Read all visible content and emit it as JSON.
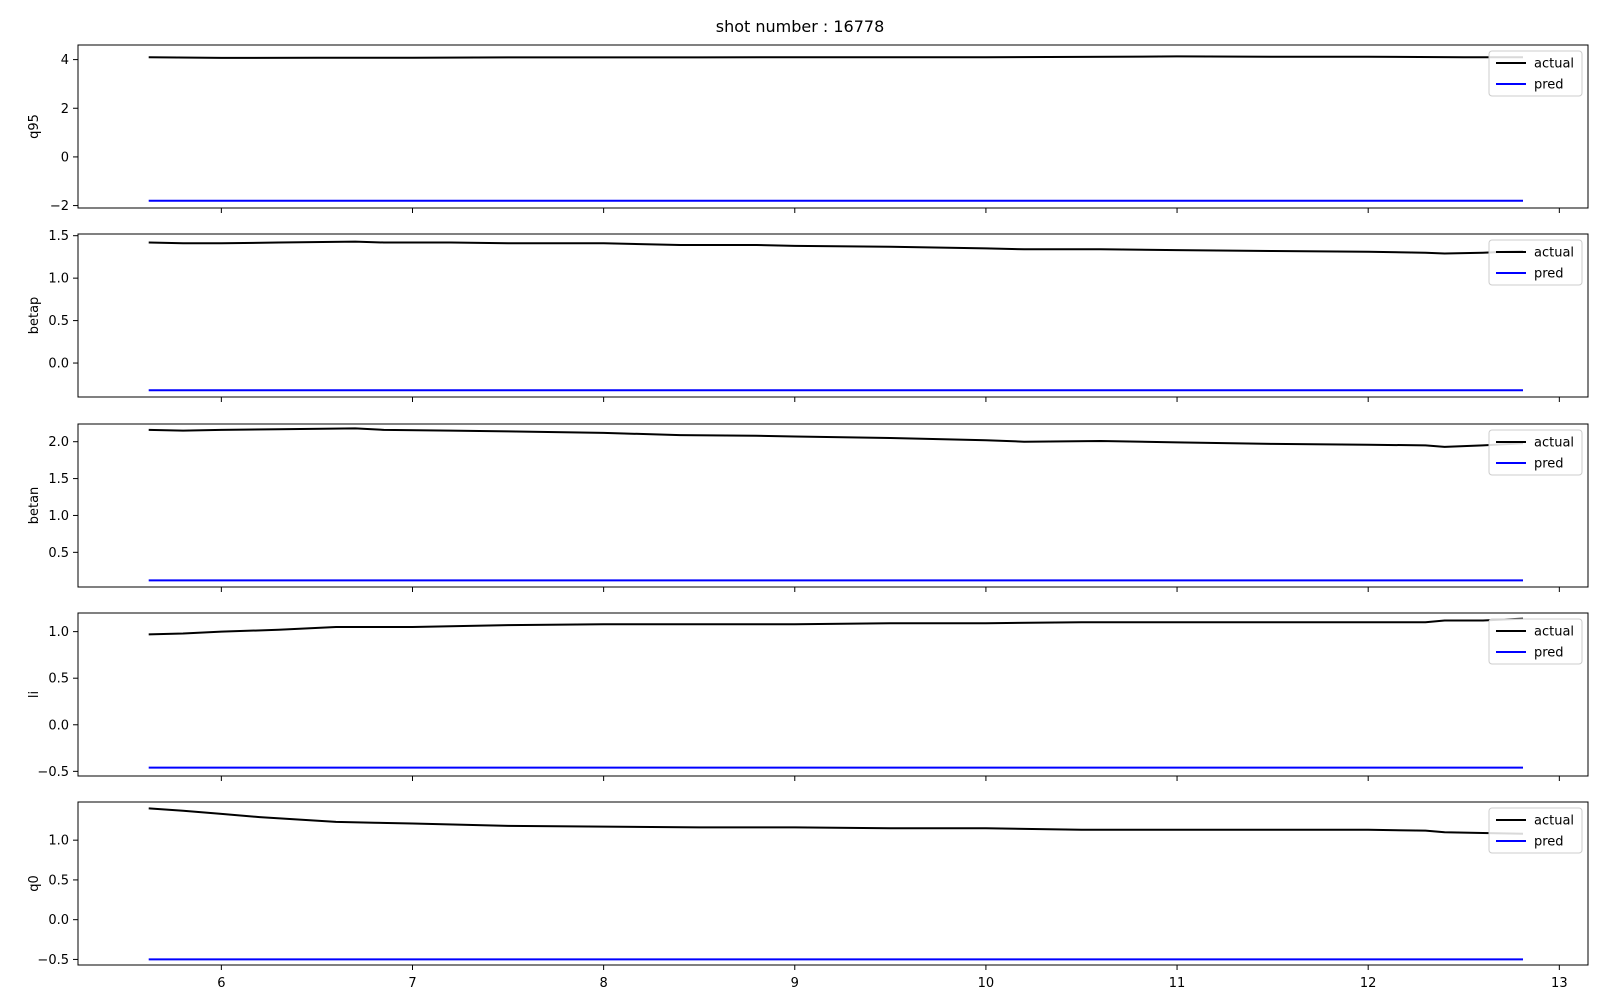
{
  "figure": {
    "title": "shot number : 16778"
  },
  "chart_data": [
    {
      "type": "line",
      "ylabel": "q95",
      "xlim": [
        5.25,
        13.15
      ],
      "ylim": [
        -2.1,
        4.6
      ],
      "yticks": [
        -2,
        0,
        2,
        4
      ],
      "ytick_labels": [
        "−2",
        "0",
        "2",
        "4"
      ],
      "xticks": [
        6,
        7,
        8,
        9,
        10,
        11,
        12,
        13
      ],
      "xtick_labels": [],
      "legend": {
        "position": "top-right",
        "entries": [
          "actual",
          "pred"
        ]
      },
      "series": [
        {
          "name": "actual",
          "color": "#000000",
          "x": [
            5.62,
            6.0,
            6.5,
            7.0,
            7.5,
            8.0,
            8.5,
            9.0,
            9.5,
            10.0,
            10.5,
            11.0,
            11.5,
            12.0,
            12.5,
            12.81
          ],
          "y": [
            4.1,
            4.07,
            4.08,
            4.08,
            4.09,
            4.09,
            4.09,
            4.1,
            4.1,
            4.1,
            4.11,
            4.13,
            4.12,
            4.12,
            4.1,
            4.1
          ]
        },
        {
          "name": "pred",
          "color": "#0000ff",
          "x": [
            5.62,
            12.81
          ],
          "y": [
            -1.8,
            -1.8
          ]
        }
      ]
    },
    {
      "type": "line",
      "ylabel": "betap",
      "xlim": [
        5.25,
        13.15
      ],
      "ylim": [
        -0.4,
        1.52
      ],
      "yticks": [
        0.0,
        0.5,
        1.0,
        1.5
      ],
      "ytick_labels": [
        "0.0",
        "0.5",
        "1.0",
        "1.5"
      ],
      "xticks": [
        6,
        7,
        8,
        9,
        10,
        11,
        12,
        13
      ],
      "xtick_labels": [],
      "legend": {
        "position": "top-right",
        "entries": [
          "actual",
          "pred"
        ]
      },
      "series": [
        {
          "name": "actual",
          "color": "#000000",
          "x": [
            5.62,
            5.8,
            6.0,
            6.3,
            6.7,
            6.85,
            7.2,
            7.5,
            8.0,
            8.4,
            8.8,
            9.0,
            9.5,
            10.0,
            10.2,
            10.6,
            11.0,
            11.5,
            12.0,
            12.3,
            12.4,
            12.6,
            12.81
          ],
          "y": [
            1.42,
            1.41,
            1.41,
            1.42,
            1.43,
            1.42,
            1.42,
            1.41,
            1.41,
            1.39,
            1.39,
            1.38,
            1.37,
            1.35,
            1.34,
            1.34,
            1.33,
            1.32,
            1.31,
            1.3,
            1.29,
            1.3,
            1.32
          ]
        },
        {
          "name": "pred",
          "color": "#0000ff",
          "x": [
            5.62,
            12.81
          ],
          "y": [
            -0.32,
            -0.32
          ]
        }
      ]
    },
    {
      "type": "line",
      "ylabel": "betan",
      "xlim": [
        5.25,
        13.15
      ],
      "ylim": [
        0.03,
        2.24
      ],
      "yticks": [
        0.5,
        1.0,
        1.5,
        2.0
      ],
      "ytick_labels": [
        "0.5",
        "1.0",
        "1.5",
        "2.0"
      ],
      "xticks": [
        6,
        7,
        8,
        9,
        10,
        11,
        12,
        13
      ],
      "xtick_labels": [],
      "legend": {
        "position": "top-right",
        "entries": [
          "actual",
          "pred"
        ]
      },
      "series": [
        {
          "name": "actual",
          "color": "#000000",
          "x": [
            5.62,
            5.8,
            6.0,
            6.3,
            6.7,
            6.85,
            7.2,
            7.5,
            8.0,
            8.4,
            8.8,
            9.0,
            9.5,
            10.0,
            10.2,
            10.6,
            11.0,
            11.5,
            12.0,
            12.3,
            12.4,
            12.6,
            12.81
          ],
          "y": [
            2.16,
            2.15,
            2.16,
            2.17,
            2.18,
            2.16,
            2.15,
            2.14,
            2.12,
            2.09,
            2.08,
            2.07,
            2.05,
            2.02,
            2.0,
            2.01,
            1.99,
            1.97,
            1.96,
            1.95,
            1.93,
            1.95,
            1.98
          ]
        },
        {
          "name": "pred",
          "color": "#0000ff",
          "x": [
            5.62,
            12.81
          ],
          "y": [
            0.12,
            0.12
          ]
        }
      ]
    },
    {
      "type": "line",
      "ylabel": "li",
      "xlim": [
        5.25,
        13.15
      ],
      "ylim": [
        -0.55,
        1.2
      ],
      "yticks": [
        -0.5,
        0.0,
        0.5,
        1.0
      ],
      "ytick_labels": [
        "−0.5",
        "0.0",
        "0.5",
        "1.0"
      ],
      "xticks": [
        6,
        7,
        8,
        9,
        10,
        11,
        12,
        13
      ],
      "xtick_labels": [],
      "legend": {
        "position": "top-right",
        "entries": [
          "actual",
          "pred"
        ]
      },
      "series": [
        {
          "name": "actual",
          "color": "#000000",
          "x": [
            5.62,
            5.8,
            6.0,
            6.3,
            6.6,
            6.8,
            7.0,
            7.5,
            8.0,
            8.5,
            9.0,
            9.5,
            10.0,
            10.5,
            11.0,
            11.5,
            12.0,
            12.3,
            12.4,
            12.6,
            12.81
          ],
          "y": [
            0.97,
            0.98,
            1.0,
            1.02,
            1.05,
            1.05,
            1.05,
            1.07,
            1.08,
            1.08,
            1.08,
            1.09,
            1.09,
            1.1,
            1.1,
            1.1,
            1.1,
            1.1,
            1.12,
            1.12,
            1.14
          ]
        },
        {
          "name": "pred",
          "color": "#0000ff",
          "x": [
            5.62,
            12.81
          ],
          "y": [
            -0.46,
            -0.46
          ]
        }
      ]
    },
    {
      "type": "line",
      "ylabel": "q0",
      "xlim": [
        5.25,
        13.15
      ],
      "ylim": [
        -0.57,
        1.48
      ],
      "yticks": [
        -0.5,
        0.0,
        0.5,
        1.0
      ],
      "ytick_labels": [
        "−0.5",
        "0.0",
        "0.5",
        "1.0"
      ],
      "xticks": [
        6,
        7,
        8,
        9,
        10,
        11,
        12,
        13
      ],
      "xtick_labels": [
        "6",
        "7",
        "8",
        "9",
        "10",
        "11",
        "12",
        "13"
      ],
      "legend": {
        "position": "top-right",
        "entries": [
          "actual",
          "pred"
        ]
      },
      "series": [
        {
          "name": "actual",
          "color": "#000000",
          "x": [
            5.62,
            5.8,
            6.0,
            6.2,
            6.4,
            6.6,
            6.8,
            7.0,
            7.5,
            8.0,
            8.5,
            9.0,
            9.5,
            10.0,
            10.5,
            11.0,
            11.5,
            12.0,
            12.3,
            12.4,
            12.6,
            12.81
          ],
          "y": [
            1.4,
            1.37,
            1.33,
            1.29,
            1.26,
            1.23,
            1.22,
            1.21,
            1.18,
            1.17,
            1.16,
            1.16,
            1.15,
            1.15,
            1.13,
            1.13,
            1.13,
            1.13,
            1.12,
            1.1,
            1.09,
            1.08
          ]
        },
        {
          "name": "pred",
          "color": "#0000ff",
          "x": [
            5.62,
            12.81
          ],
          "y": [
            -0.5,
            -0.5
          ]
        }
      ]
    }
  ]
}
